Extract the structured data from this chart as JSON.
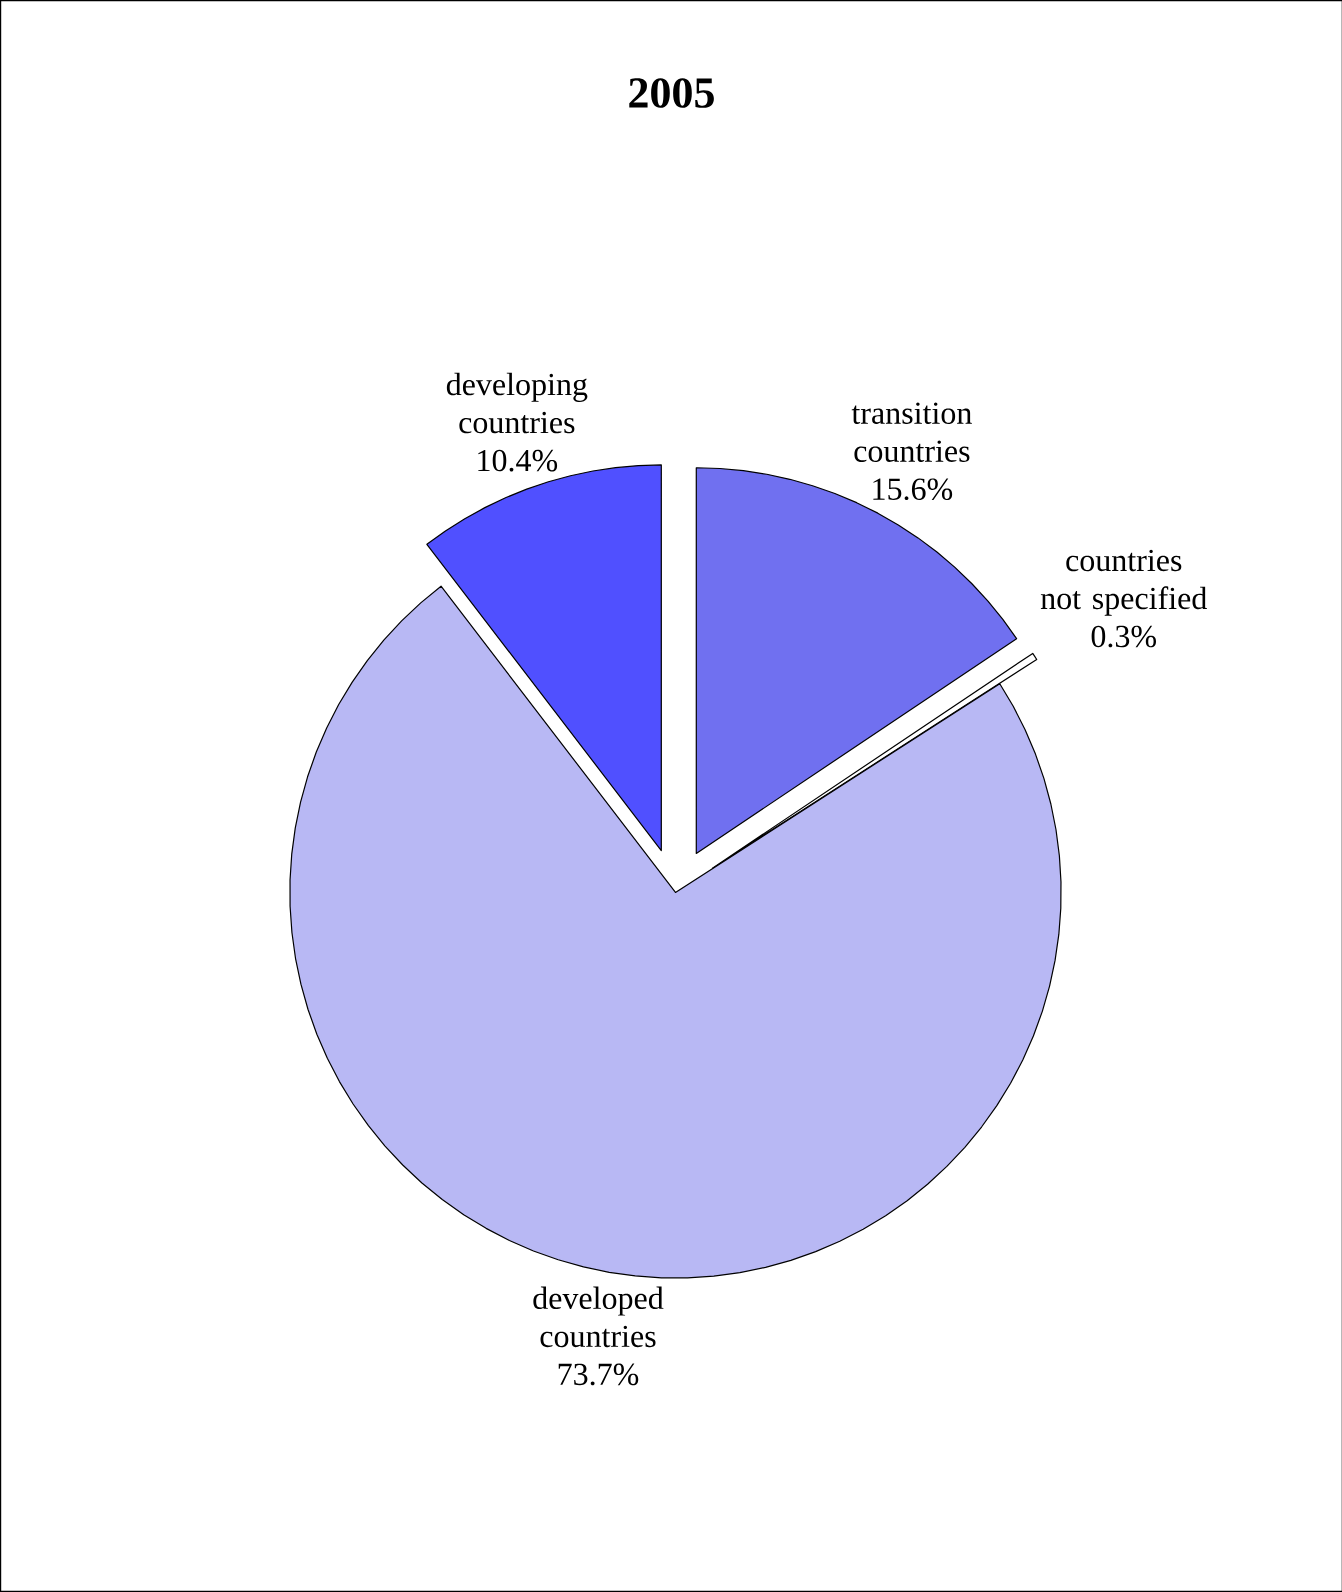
{
  "chart_data": {
    "type": "pie",
    "title": "2005",
    "categories": [
      "transition countries",
      "countries not specified",
      "developed countries",
      "developing countries"
    ],
    "values": [
      15.6,
      0.3,
      73.7,
      10.4
    ],
    "value_labels": [
      "15.6%",
      "0.3%",
      "73.7%",
      "10.4%"
    ],
    "colors": [
      "#7070f0",
      "#ffffff",
      "#b8b8f4",
      "#5050ff"
    ]
  }
}
